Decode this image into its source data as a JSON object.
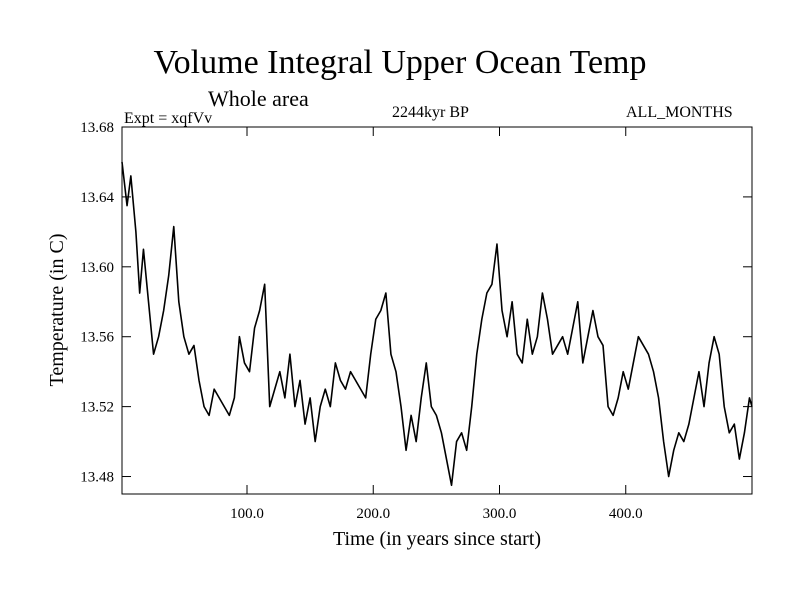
{
  "chart_data": {
    "type": "line",
    "title": "Volume Integral Upper Ocean Temp",
    "subtitle": "Whole area",
    "annotations": {
      "left": "Expt = xqfVv",
      "center": "2244kyr BP",
      "right": "ALL_MONTHS"
    },
    "xlabel": "Time (in years since start)",
    "ylabel": "Temperature (in C)",
    "xlim": [
      1,
      500
    ],
    "ylim": [
      13.47,
      13.68
    ],
    "xticks": [
      100,
      200,
      300,
      400
    ],
    "xtick_labels": [
      "100.0",
      "200.0",
      "300.0",
      "400.0"
    ],
    "yticks": [
      13.48,
      13.52,
      13.56,
      13.6,
      13.64,
      13.68
    ],
    "ytick_labels": [
      "13.48",
      "13.52",
      "13.56",
      "13.60",
      "13.64",
      "13.68"
    ],
    "grid": false,
    "series": [
      {
        "name": "Volume Integral Upper Ocean Temp",
        "x": [
          1,
          5,
          8,
          12,
          15,
          18,
          22,
          26,
          30,
          34,
          38,
          42,
          46,
          50,
          54,
          58,
          62,
          66,
          70,
          74,
          78,
          82,
          86,
          90,
          94,
          98,
          102,
          106,
          110,
          114,
          118,
          122,
          126,
          130,
          134,
          138,
          142,
          146,
          150,
          154,
          158,
          162,
          166,
          170,
          174,
          178,
          182,
          186,
          190,
          194,
          198,
          202,
          206,
          210,
          214,
          218,
          222,
          226,
          230,
          234,
          238,
          242,
          246,
          250,
          254,
          258,
          262,
          266,
          270,
          274,
          278,
          282,
          286,
          290,
          294,
          298,
          302,
          306,
          310,
          314,
          318,
          322,
          326,
          330,
          334,
          338,
          342,
          346,
          350,
          354,
          358,
          362,
          366,
          370,
          374,
          378,
          382,
          386,
          390,
          394,
          398,
          402,
          406,
          410,
          414,
          418,
          422,
          426,
          430,
          434,
          438,
          442,
          446,
          450,
          454,
          458,
          462,
          466,
          470,
          474,
          478,
          482,
          486,
          490,
          494,
          498,
          500
        ],
        "values": [
          13.66,
          13.635,
          13.652,
          13.62,
          13.585,
          13.61,
          13.58,
          13.55,
          13.56,
          13.575,
          13.595,
          13.623,
          13.58,
          13.56,
          13.55,
          13.555,
          13.535,
          13.52,
          13.515,
          13.53,
          13.525,
          13.52,
          13.515,
          13.525,
          13.56,
          13.545,
          13.54,
          13.565,
          13.575,
          13.59,
          13.52,
          13.53,
          13.54,
          13.525,
          13.55,
          13.52,
          13.535,
          13.51,
          13.525,
          13.5,
          13.52,
          13.53,
          13.52,
          13.545,
          13.535,
          13.53,
          13.54,
          13.535,
          13.53,
          13.525,
          13.55,
          13.57,
          13.575,
          13.585,
          13.55,
          13.54,
          13.52,
          13.495,
          13.515,
          13.5,
          13.525,
          13.545,
          13.52,
          13.515,
          13.505,
          13.49,
          13.475,
          13.5,
          13.505,
          13.495,
          13.52,
          13.55,
          13.57,
          13.585,
          13.59,
          13.613,
          13.575,
          13.56,
          13.58,
          13.55,
          13.545,
          13.57,
          13.55,
          13.56,
          13.585,
          13.57,
          13.55,
          13.555,
          13.56,
          13.55,
          13.565,
          13.58,
          13.545,
          13.56,
          13.575,
          13.56,
          13.555,
          13.52,
          13.515,
          13.525,
          13.54,
          13.53,
          13.545,
          13.56,
          13.555,
          13.55,
          13.54,
          13.525,
          13.5,
          13.48,
          13.495,
          13.505,
          13.5,
          13.51,
          13.525,
          13.54,
          13.52,
          13.545,
          13.56,
          13.55,
          13.52,
          13.505,
          13.51,
          13.49,
          13.505,
          13.525,
          13.52
        ]
      }
    ]
  }
}
